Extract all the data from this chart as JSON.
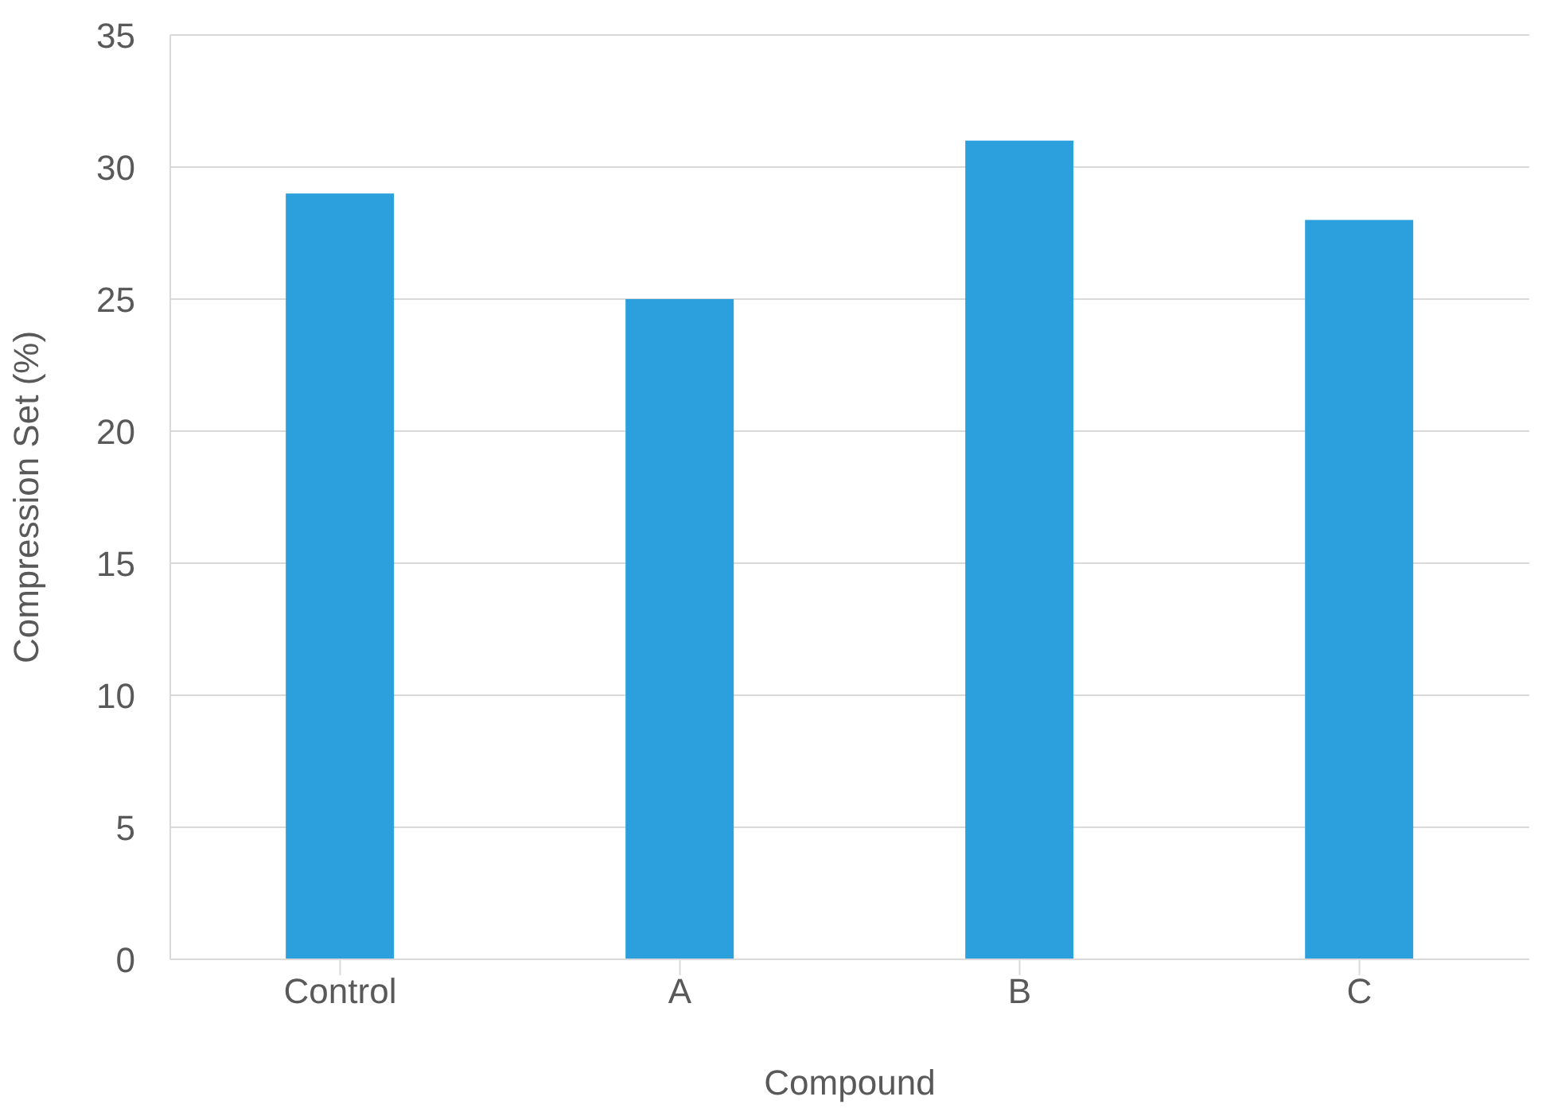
{
  "chart_data": {
    "type": "bar",
    "xlabel": "Compound",
    "ylabel": "Compression Set (%)",
    "categories": [
      "Control",
      "A",
      "B",
      "C"
    ],
    "values": [
      29,
      25,
      31,
      28
    ],
    "color": "#2ba0dd",
    "ylim": [
      0,
      35
    ],
    "yticks": [
      0,
      5,
      10,
      15,
      20,
      25,
      30,
      35
    ],
    "grid": "y"
  }
}
